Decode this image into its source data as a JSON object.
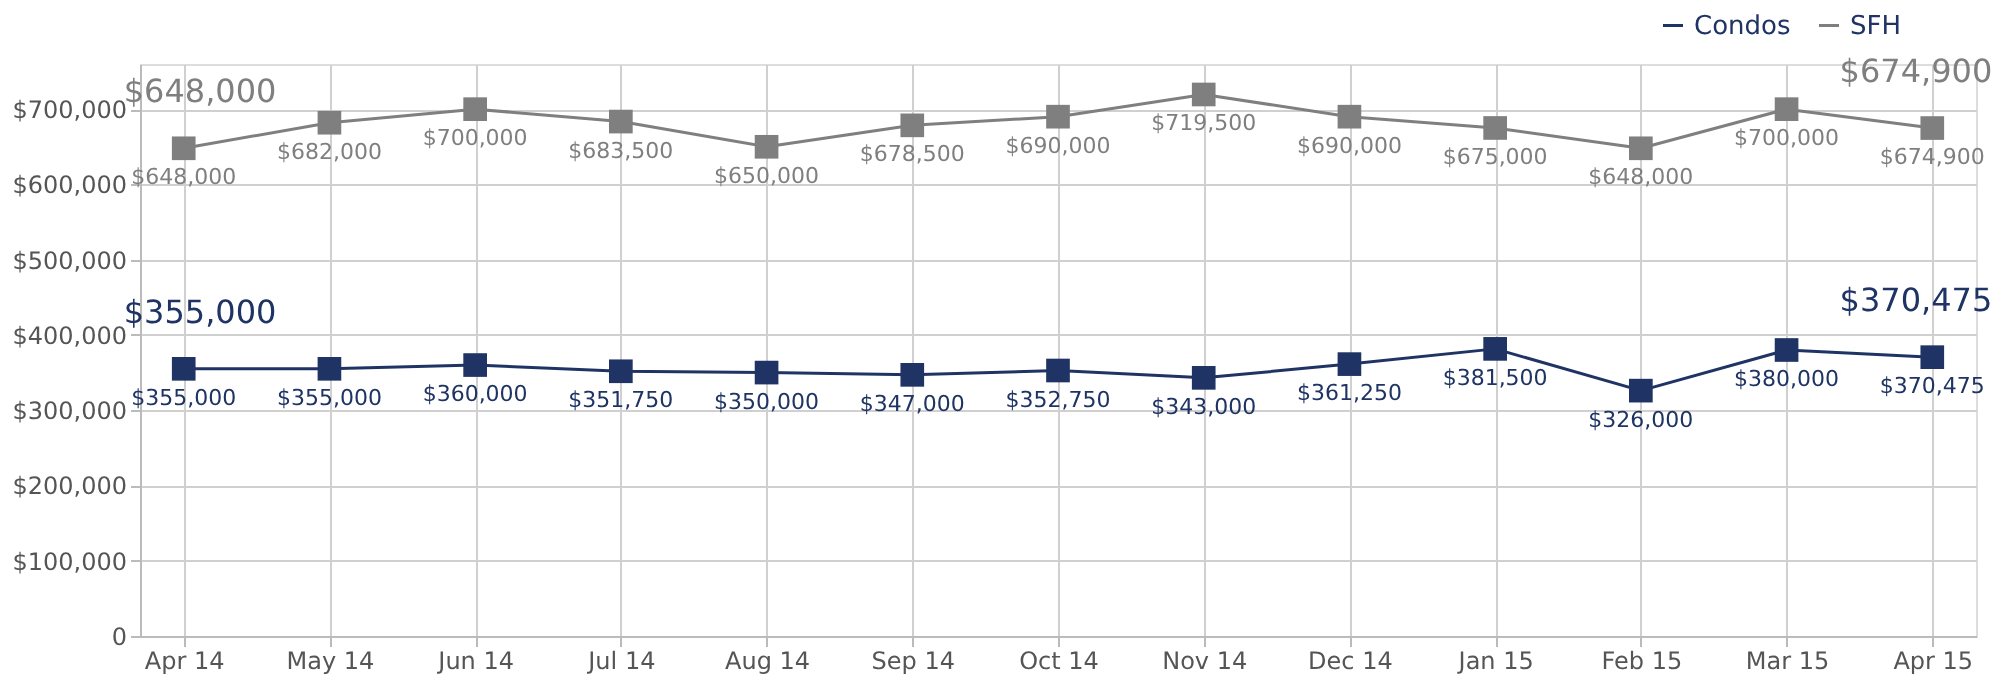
{
  "chart_data": {
    "type": "line",
    "categories": [
      "Apr 14",
      "May 14",
      "Jun 14",
      "Jul 14",
      "Aug 14",
      "Sep 14",
      "Oct 14",
      "Nov 14",
      "Dec 14",
      "Jan 15",
      "Feb 15",
      "Mar 15",
      "Apr 15"
    ],
    "series": [
      {
        "name": "Condos",
        "color": "#1f3464",
        "values": [
          355000,
          355000,
          360000,
          351750,
          350000,
          347000,
          352750,
          343000,
          361250,
          381500,
          326000,
          380000,
          370475
        ],
        "value_labels": [
          "$355,000",
          "$355,000",
          "$360,000",
          "$351,750",
          "$350,000",
          "$347,000",
          "$352,750",
          "$343,000",
          "$361,250",
          "$381,500",
          "$326,000",
          "$380,000",
          "$370,475"
        ]
      },
      {
        "name": "SFH",
        "color": "#7f7f7f",
        "values": [
          648000,
          682000,
          700000,
          683500,
          650000,
          678500,
          690000,
          719500,
          690000,
          675000,
          648000,
          700000,
          674900
        ],
        "value_labels": [
          "$648,000",
          "$682,000",
          "$700,000",
          "$683,500",
          "$650,000",
          "$678,500",
          "$690,000",
          "$719,500",
          "$690,000",
          "$675,000",
          "$648,000",
          "$700,000",
          "$674,900"
        ]
      }
    ],
    "ylim": [
      0,
      760000
    ],
    "yticks": [
      {
        "value": 0,
        "label": "0"
      },
      {
        "value": 100000,
        "label": "$100,000"
      },
      {
        "value": 200000,
        "label": "$200,000"
      },
      {
        "value": 300000,
        "label": "$300,000"
      },
      {
        "value": 400000,
        "label": "$400,000"
      },
      {
        "value": 500000,
        "label": "$500,000"
      },
      {
        "value": 600000,
        "label": "$600,000"
      },
      {
        "value": 700000,
        "label": "$700,000"
      }
    ],
    "annotations": [
      "$648,000",
      "$674,900",
      "$355,000",
      "$370,475"
    ],
    "grid": true,
    "legend": "top right",
    "marker": "square",
    "line_style": "solid"
  }
}
